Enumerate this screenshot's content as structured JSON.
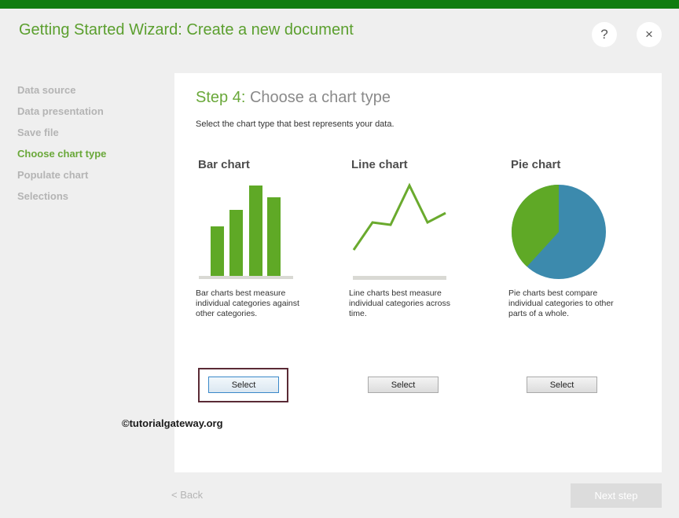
{
  "window": {
    "title": "Getting Started Wizard: Create a new document",
    "help_label": "?",
    "close_label": "×",
    "accent": "#107c10"
  },
  "nav": {
    "items": [
      {
        "label": "Data source",
        "active": false
      },
      {
        "label": "Data presentation",
        "active": false
      },
      {
        "label": "Save file",
        "active": false
      },
      {
        "label": "Choose chart type",
        "active": true
      },
      {
        "label": "Populate chart",
        "active": false
      },
      {
        "label": "Selections",
        "active": false
      }
    ]
  },
  "step": {
    "number": "Step 4:",
    "title": "Choose a chart type",
    "instructions": "Select the chart type that best represents your data."
  },
  "charts": [
    {
      "name": "Bar chart",
      "description": "Bar charts best measure individual categories against other categories.",
      "select_label": "Select",
      "icon": "bar-chart-icon"
    },
    {
      "name": "Line chart",
      "description": "Line charts best measure individual categories across time.",
      "select_label": "Select",
      "icon": "line-chart-icon"
    },
    {
      "name": "Pie chart",
      "description": "Pie charts best compare individual categories to other parts of a whole.",
      "select_label": "Select",
      "icon": "pie-chart-icon"
    }
  ],
  "watermark": "©tutorialgateway.org",
  "footer": {
    "back_label": "< Back",
    "next_label": "Next step"
  },
  "colors": {
    "green": "#5fa926",
    "blue": "#3c8aad",
    "title_green": "#5b9f2e"
  }
}
